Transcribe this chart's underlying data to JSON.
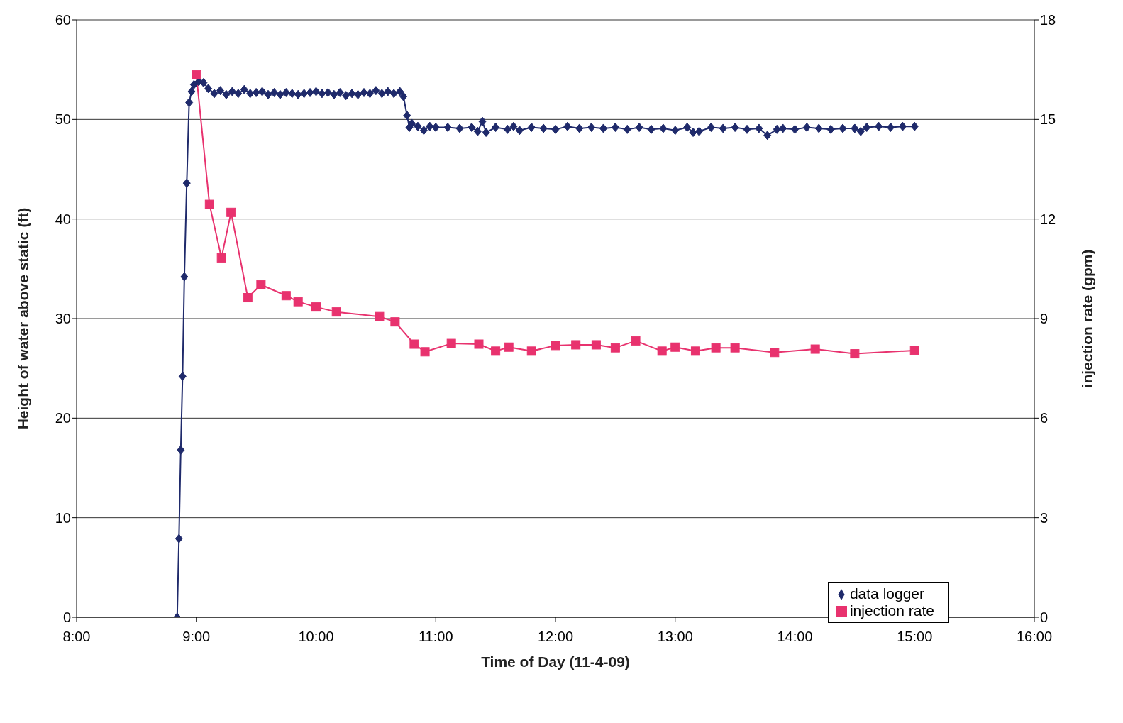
{
  "chart_data": {
    "type": "line",
    "xlabel": "Time of Day (11-4-09)",
    "ylabel": "Height of water above static (ft)",
    "y2label": "injection rate (gpm)",
    "xlim": [
      8,
      16
    ],
    "xticks": [
      {
        "value": 8,
        "label": "8:00"
      },
      {
        "value": 9,
        "label": "9:00"
      },
      {
        "value": 10,
        "label": "10:00"
      },
      {
        "value": 11,
        "label": "11:00"
      },
      {
        "value": 12,
        "label": "12:00"
      },
      {
        "value": 13,
        "label": "13:00"
      },
      {
        "value": 14,
        "label": "14:00"
      },
      {
        "value": 15,
        "label": "15:00"
      },
      {
        "value": 16,
        "label": "16:00"
      }
    ],
    "ylim": [
      0,
      60
    ],
    "yticks": [
      0,
      10,
      20,
      30,
      40,
      50,
      60
    ],
    "y2lim": [
      0,
      18
    ],
    "y2ticks": [
      0,
      3,
      6,
      9,
      12,
      15,
      18
    ],
    "grid": "y",
    "legend": "bottom right",
    "line_style": "solid",
    "series": [
      {
        "name": "data logger",
        "color": "#1f2a6b",
        "marker": "diamond",
        "x": [
          8.84,
          8.855,
          8.87,
          8.885,
          8.9,
          8.92,
          8.94,
          8.96,
          8.98,
          9.02,
          9.06,
          9.1,
          9.15,
          9.2,
          9.25,
          9.3,
          9.35,
          9.4,
          9.45,
          9.5,
          9.55,
          9.6,
          9.65,
          9.7,
          9.75,
          9.8,
          9.85,
          9.9,
          9.95,
          10.0,
          10.05,
          10.1,
          10.15,
          10.2,
          10.25,
          10.3,
          10.35,
          10.4,
          10.45,
          10.5,
          10.55,
          10.6,
          10.65,
          10.7,
          10.73,
          10.76,
          10.78,
          10.8,
          10.85,
          10.9,
          10.95,
          11.0,
          11.1,
          11.2,
          11.3,
          11.35,
          11.39,
          11.42,
          11.5,
          11.6,
          11.65,
          11.7,
          11.8,
          11.9,
          12.0,
          12.1,
          12.2,
          12.3,
          12.4,
          12.5,
          12.6,
          12.7,
          12.8,
          12.9,
          13.0,
          13.1,
          13.15,
          13.2,
          13.3,
          13.4,
          13.5,
          13.6,
          13.7,
          13.77,
          13.85,
          13.9,
          14.0,
          14.1,
          14.2,
          14.3,
          14.4,
          14.5,
          14.55,
          14.6,
          14.7,
          14.8,
          14.9,
          15.0
        ],
        "values": [
          0,
          7.9,
          16.8,
          24.2,
          34.2,
          43.6,
          51.7,
          52.8,
          53.5,
          53.8,
          53.7,
          53.1,
          52.6,
          52.9,
          52.5,
          52.8,
          52.6,
          53.0,
          52.6,
          52.7,
          52.8,
          52.5,
          52.7,
          52.5,
          52.7,
          52.6,
          52.5,
          52.6,
          52.7,
          52.8,
          52.6,
          52.7,
          52.5,
          52.7,
          52.4,
          52.6,
          52.5,
          52.7,
          52.6,
          52.9,
          52.6,
          52.8,
          52.6,
          52.8,
          52.3,
          50.4,
          49.2,
          49.6,
          49.3,
          48.9,
          49.3,
          49.2,
          49.2,
          49.1,
          49.2,
          48.8,
          49.8,
          48.7,
          49.2,
          49.0,
          49.3,
          48.9,
          49.2,
          49.1,
          49.0,
          49.3,
          49.1,
          49.2,
          49.1,
          49.2,
          49.0,
          49.2,
          49.0,
          49.1,
          48.9,
          49.2,
          48.7,
          48.8,
          49.2,
          49.1,
          49.2,
          49.0,
          49.1,
          48.4,
          49.0,
          49.1,
          49.0,
          49.2,
          49.1,
          49.0,
          49.1,
          49.1,
          48.8,
          49.2,
          49.3,
          49.2,
          49.3,
          49.3
        ]
      },
      {
        "name": "injection rate",
        "color": "#e8326e",
        "marker": "square",
        "axis": "y2",
        "x": [
          9.0,
          9.11,
          9.21,
          9.29,
          9.43,
          9.54,
          9.75,
          9.85,
          10.0,
          10.17,
          10.53,
          10.66,
          10.82,
          10.91,
          11.13,
          11.36,
          11.5,
          11.61,
          11.8,
          12.0,
          12.17,
          12.34,
          12.5,
          12.67,
          12.89,
          13.0,
          13.17,
          13.34,
          13.5,
          13.83,
          14.17,
          14.5,
          15.0
        ],
        "values": [
          16.35,
          12.44,
          10.83,
          12.2,
          9.63,
          10.02,
          9.69,
          9.51,
          9.35,
          9.2,
          9.06,
          8.9,
          8.23,
          8.0,
          8.25,
          8.23,
          8.02,
          8.14,
          8.02,
          8.19,
          8.21,
          8.21,
          8.12,
          8.33,
          8.02,
          8.14,
          8.02,
          8.12,
          8.12,
          7.98,
          8.08,
          7.94,
          8.04
        ]
      }
    ]
  }
}
